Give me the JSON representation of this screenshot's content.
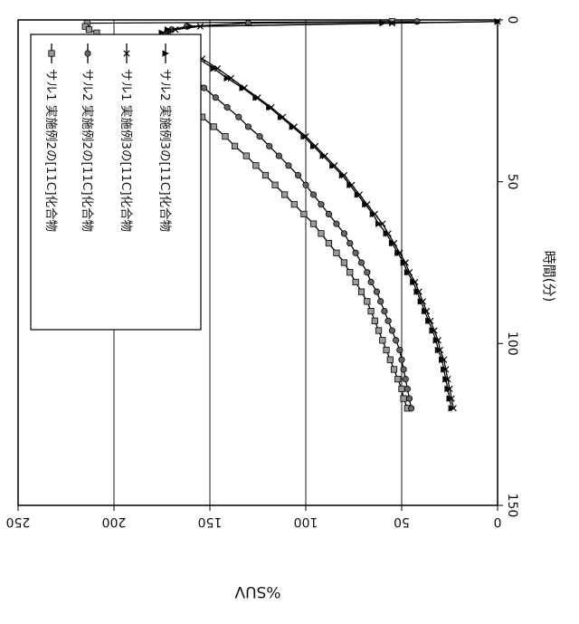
{
  "chart_data": {
    "type": "line",
    "orientation": "rotated-90-clockwise",
    "title": "",
    "xlabel": "時間(分)",
    "ylabel": "%SUV",
    "xlim": [
      0,
      150
    ],
    "ylim": [
      0,
      250
    ],
    "x_ticks": [
      "0",
      "50",
      "100",
      "150"
    ],
    "y_ticks": [
      "0",
      "50",
      "100",
      "150",
      "200",
      "250"
    ],
    "grid": "horizontal",
    "legend_position": "top-left",
    "series": [
      {
        "name": "サル1  実施例2の[11C]化合物",
        "marker": "square",
        "x": [
          0.5,
          1,
          2,
          3,
          4,
          6,
          8,
          10,
          12,
          15,
          18,
          21,
          24,
          27,
          30,
          33,
          36,
          39,
          42,
          45,
          48,
          51,
          54,
          57,
          60,
          63,
          66,
          69,
          72,
          75,
          78,
          81,
          84,
          87,
          90,
          93,
          96,
          99,
          102,
          105,
          108,
          111,
          114,
          117,
          120
        ],
        "y": [
          55,
          214,
          215,
          213,
          209,
          204,
          200,
          195,
          190,
          184,
          178,
          172,
          166,
          160,
          154,
          148,
          142,
          137,
          131,
          126,
          121,
          116,
          111,
          106,
          101,
          96,
          92,
          88,
          84,
          80,
          77,
          74,
          71,
          68,
          66,
          64,
          62,
          60,
          58,
          56,
          54,
          52,
          50,
          49,
          47
        ]
      },
      {
        "name": "サル2  実施例2の[11C]化合物",
        "marker": "circle",
        "x": [
          0.5,
          1,
          2,
          3,
          4,
          6,
          8,
          10,
          12,
          15,
          18,
          21,
          24,
          27,
          30,
          33,
          36,
          39,
          42,
          45,
          48,
          51,
          54,
          57,
          60,
          63,
          66,
          69,
          72,
          75,
          78,
          81,
          84,
          87,
          90,
          93,
          96,
          99,
          102,
          105,
          108,
          111,
          114,
          117,
          120
        ],
        "y": [
          42,
          130,
          162,
          170,
          172,
          174,
          173,
          170,
          167,
          162,
          158,
          153,
          147,
          141,
          135,
          130,
          124,
          119,
          114,
          109,
          104,
          100,
          96,
          92,
          88,
          84,
          80,
          77,
          74,
          71,
          68,
          66,
          63,
          61,
          59,
          57,
          55,
          53,
          51,
          50,
          49,
          48,
          47,
          46,
          45
        ]
      },
      {
        "name": "サル1  実施例3の[11C]化合物",
        "marker": "x",
        "x": [
          0.5,
          1,
          2,
          3,
          4,
          6,
          8,
          10,
          12,
          15,
          18,
          21,
          24,
          27,
          30,
          33,
          36,
          39,
          42,
          45,
          48,
          51,
          54,
          57,
          60,
          63,
          66,
          69,
          72,
          75,
          78,
          81,
          84,
          87,
          90,
          93,
          96,
          99,
          102,
          105,
          108,
          111,
          114,
          117,
          120
        ],
        "y": [
          0,
          55,
          155,
          168,
          172,
          170,
          166,
          160,
          154,
          146,
          139,
          132,
          125,
          118,
          112,
          106,
          100,
          95,
          90,
          85,
          80,
          76,
          72,
          68,
          64,
          60,
          57,
          54,
          51,
          48,
          46,
          43,
          41,
          39,
          37,
          35,
          33,
          31,
          30,
          28,
          27,
          26,
          25,
          24,
          23
        ]
      },
      {
        "name": "サル2  実施例3の[11C]化合物",
        "marker": "triangle",
        "x": [
          0.5,
          1,
          2,
          3,
          4,
          6,
          8,
          10,
          12,
          15,
          18,
          21,
          24,
          27,
          30,
          33,
          36,
          39,
          42,
          45,
          48,
          51,
          54,
          57,
          60,
          63,
          66,
          69,
          72,
          75,
          78,
          81,
          84,
          87,
          90,
          93,
          96,
          99,
          102,
          105,
          108,
          111,
          114,
          117,
          120
        ],
        "y": [
          0,
          60,
          160,
          172,
          175,
          172,
          168,
          162,
          156,
          148,
          141,
          133,
          126,
          119,
          113,
          107,
          101,
          96,
          91,
          86,
          81,
          77,
          73,
          69,
          65,
          62,
          58,
          55,
          52,
          49,
          47,
          44,
          42,
          40,
          38,
          36,
          34,
          32,
          31,
          29,
          28,
          27,
          26,
          25,
          24
        ]
      }
    ]
  }
}
